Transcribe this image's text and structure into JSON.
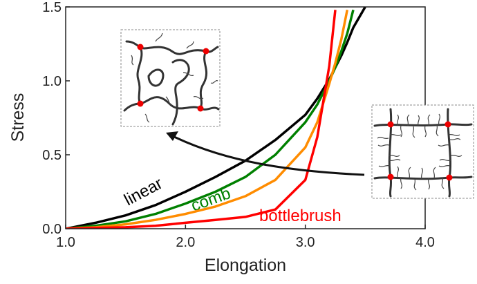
{
  "chart_data": {
    "type": "line",
    "xlabel": "Elongation",
    "ylabel": "Stress",
    "x": [
      1.0,
      1.25,
      1.5,
      1.75,
      2.0,
      2.25,
      2.5,
      2.75,
      3.0,
      3.1,
      3.2,
      3.25,
      3.3,
      3.35,
      3.4,
      3.5
    ],
    "series": [
      {
        "name": "linear",
        "color": "#000000",
        "values": [
          0,
          0.04,
          0.09,
          0.16,
          0.25,
          0.35,
          0.46,
          0.6,
          0.77,
          0.88,
          1.01,
          1.09,
          1.17,
          1.26,
          1.36,
          1.5
        ]
      },
      {
        "name": "comb",
        "color": "#008000",
        "values": [
          0,
          0.02,
          0.05,
          0.1,
          0.17,
          0.25,
          0.35,
          0.5,
          0.72,
          0.84,
          1.0,
          1.09,
          1.2,
          1.32,
          1.48,
          null
        ]
      },
      {
        "color": "#ff8c00",
        "values": [
          0,
          0.01,
          0.03,
          0.06,
          0.1,
          0.15,
          0.22,
          0.33,
          0.55,
          0.72,
          0.98,
          1.12,
          1.28,
          1.48,
          null,
          null
        ]
      },
      {
        "name": "bottlebrush",
        "color": "#ff0000",
        "values": [
          0,
          0.005,
          0.01,
          0.02,
          0.04,
          0.06,
          0.08,
          0.13,
          0.33,
          0.62,
          1.1,
          1.48,
          null,
          null,
          null,
          null
        ]
      }
    ],
    "xlim": [
      1.0,
      4.0
    ],
    "ylim": [
      0.0,
      1.5
    ],
    "xticks": [
      {
        "value": 1,
        "label": "1.0"
      },
      {
        "value": 2,
        "label": "2.0"
      },
      {
        "value": 3,
        "label": "3.0"
      },
      {
        "value": 4,
        "label": "4.0"
      }
    ],
    "yticks": [
      {
        "value": 0,
        "label": "0.0"
      },
      {
        "value": 0.5,
        "label": "0.5"
      },
      {
        "value": 1,
        "label": "1.0"
      },
      {
        "value": 1.5,
        "label": "1.5"
      }
    ]
  }
}
